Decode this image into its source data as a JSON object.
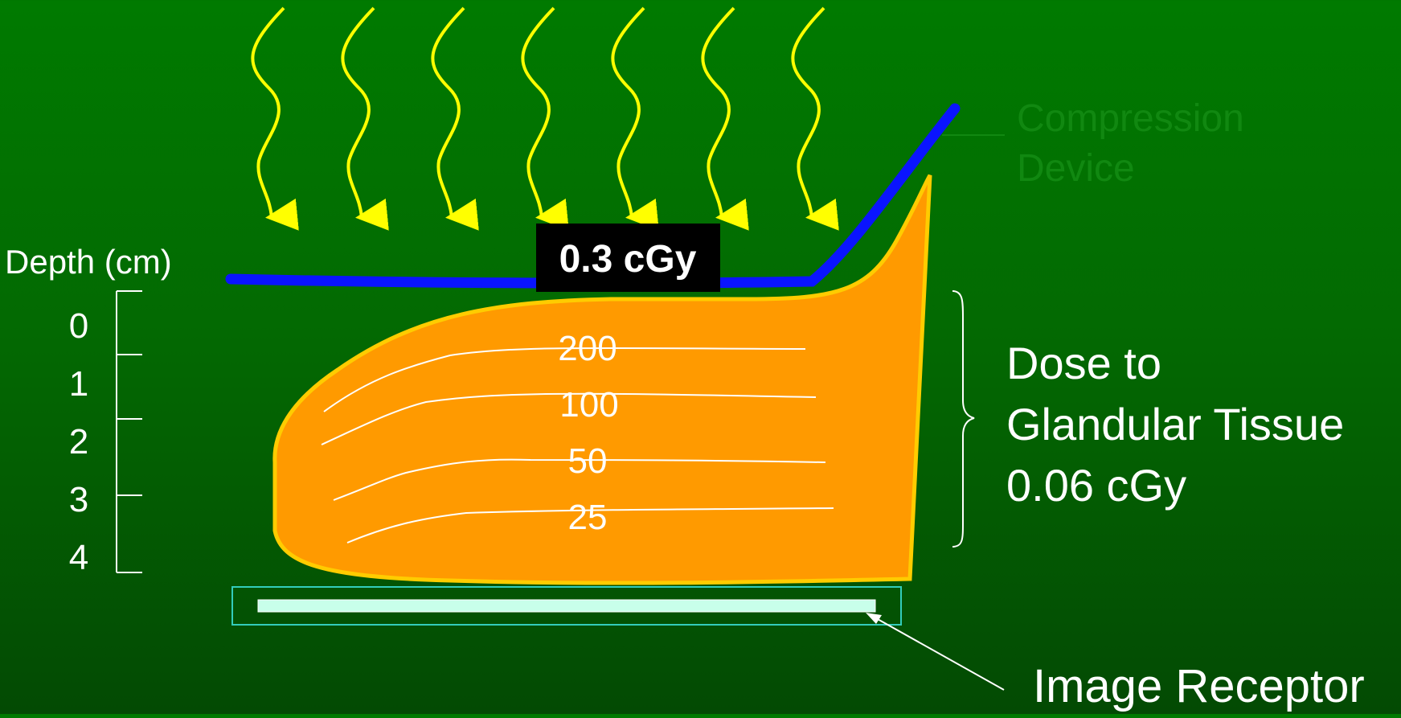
{
  "dose_label": "0.3 cGy",
  "depth_axis": {
    "title": "Depth (cm)",
    "ticks": [
      "0",
      "1",
      "2",
      "3",
      "4"
    ]
  },
  "isodose_lines": [
    "200",
    "100",
    "50",
    "25"
  ],
  "labels": {
    "compression_line1": "Compression",
    "compression_line2": "Device",
    "glandular_line1": "Dose to",
    "glandular_line2": "Glandular Tissue",
    "glandular_line3": "0.06 cGy",
    "image_receptor": "Image Receptor"
  },
  "colors": {
    "breast_fill": "#ff9a00",
    "breast_outline": "#ffcc00",
    "compression": "#0a14ff",
    "xray": "#ffff00",
    "receptor_fill": "#c8ffea",
    "receptor_outline": "#33ccbb",
    "compression_text": "#118811"
  }
}
